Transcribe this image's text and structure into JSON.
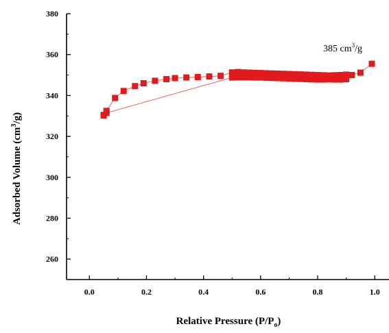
{
  "chart_data": {
    "type": "scatter",
    "xlabel_main": "Relative Pressure (P/P",
    "xlabel_sub": "o",
    "xlabel_close": ")",
    "ylabel_main": "Adsorbed Volume (cm",
    "ylabel_sup": "3",
    "ylabel_close": "/g)",
    "annotation_main": "385 cm",
    "annotation_sup": "3",
    "annotation_close": "/g",
    "xlim": [
      -0.08,
      1.05
    ],
    "ylim": [
      250,
      380
    ],
    "xticks": [
      "0.0",
      "0.2",
      "0.4",
      "0.6",
      "0.8",
      "1.0"
    ],
    "xtick_values": [
      0.0,
      0.2,
      0.4,
      0.6,
      0.8,
      1.0
    ],
    "yticks": [
      "260",
      "280",
      "300",
      "320",
      "340",
      "360",
      "380"
    ],
    "ytick_values": [
      260,
      280,
      300,
      320,
      340,
      360,
      380
    ],
    "grid": false,
    "series": [
      {
        "color": "#e31a1c",
        "marker": "square",
        "x": [
          0.05,
          0.06,
          0.09,
          0.12,
          0.16,
          0.19,
          0.23,
          0.27,
          0.3,
          0.34,
          0.38,
          0.42,
          0.46,
          0.5,
          0.52,
          0.54,
          0.56,
          0.58,
          0.6,
          0.62,
          0.64,
          0.66,
          0.68,
          0.7,
          0.72,
          0.74,
          0.76,
          0.78,
          0.8,
          0.82,
          0.84,
          0.86,
          0.88,
          0.9,
          0.92,
          0.95,
          0.99,
          0.05,
          0.06,
          0.5,
          0.52,
          0.54,
          0.56,
          0.58,
          0.6,
          0.62,
          0.64,
          0.66,
          0.68,
          0.7,
          0.72,
          0.74,
          0.76,
          0.78,
          0.8,
          0.82,
          0.84,
          0.86,
          0.88,
          0.9
        ],
        "y": [
          330.5,
          332.5,
          338.8,
          342.2,
          344.6,
          346.0,
          347.2,
          348.0,
          348.5,
          348.8,
          349.0,
          349.3,
          349.6,
          351.3,
          351.5,
          351.3,
          351.2,
          351.1,
          351.0,
          350.9,
          350.8,
          350.7,
          350.6,
          350.5,
          350.4,
          350.3,
          350.2,
          350.1,
          350.0,
          349.9,
          349.8,
          349.9,
          350.0,
          350.2,
          350.0,
          351.2,
          355.5,
          330.2,
          331.5,
          348.8,
          348.9,
          348.9,
          348.9,
          348.8,
          348.8,
          348.7,
          348.6,
          348.5,
          348.4,
          348.3,
          348.2,
          348.1,
          348.0,
          347.9,
          347.8,
          347.8,
          347.9,
          347.8,
          347.8,
          348.0
        ]
      }
    ]
  }
}
